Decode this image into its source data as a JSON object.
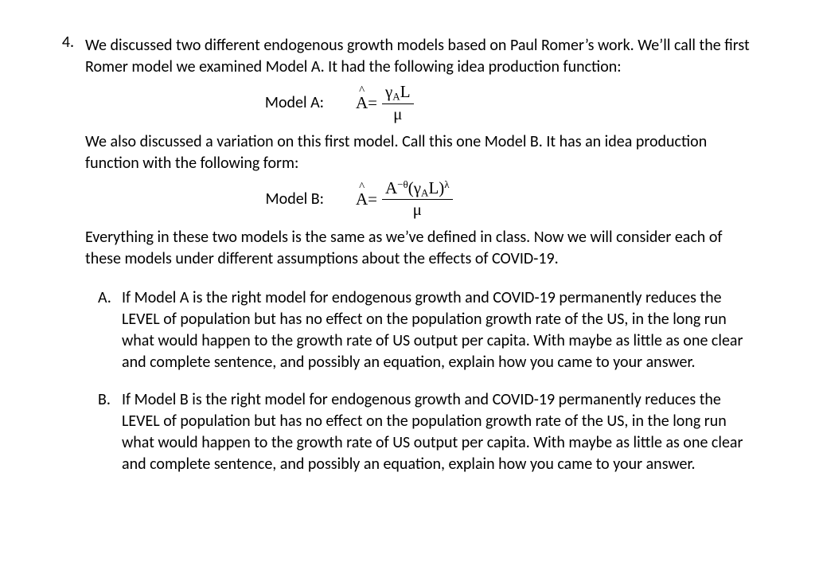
{
  "question": {
    "number": "4.",
    "intro1": "We discussed two different endogenous growth models based on Paul Romer’s work. We’ll call the first Romer model we examined Model A. It had the following idea production function:",
    "modelA_label": "Model A:",
    "intro2": "We also discussed a variation on this first model. Call this one Model B. It has an idea production function with the following form:",
    "modelB_label": "Model B:",
    "intro3": "Everything in these two models is the same as we’ve defined in class. Now we will consider each of these models under different assumptions about the effects of COVID-19.",
    "eqA": {
      "lhs_base": "A",
      "hat": "^",
      "eq": " = ",
      "num_gamma": "γ",
      "num_sub": "A",
      "num_L": "L",
      "den": "μ"
    },
    "eqB": {
      "lhs_base": "A",
      "hat": "^",
      "eq": " = ",
      "num_A": "A",
      "num_exp": "−θ",
      "num_open": "(",
      "num_gamma": "γ",
      "num_sub": "A",
      "num_L": "L",
      "num_close": ")",
      "num_lambda": "λ",
      "den": "μ"
    },
    "parts": {
      "A": {
        "letter": "A.",
        "text": "If Model A is the right model for endogenous growth and COVID-19 permanently reduces the LEVEL of population but has no effect on the population growth rate of the US, in the long run what would happen to the growth rate of US output per capita. With maybe as little as one clear and complete sentence, and possibly an equation, explain how you came to your answer."
      },
      "B": {
        "letter": "B.",
        "text": "If Model B is the right model for endogenous growth and COVID-19 permanently reduces the LEVEL of population but has no effect on the population growth rate of the US, in the long run what would happen to the growth rate of US output per capita. With maybe as little as one clear and complete sentence, and possibly an equation, explain how you came to your answer."
      }
    }
  },
  "style": {
    "background": "#ffffff",
    "text_color": "#000000",
    "font_size_body": 20,
    "font_family_body": "Calibri",
    "font_family_math": "Cambria Math"
  }
}
